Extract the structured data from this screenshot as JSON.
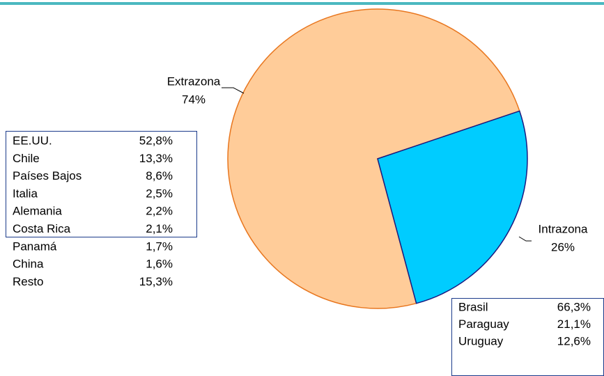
{
  "chart_data": {
    "type": "pie",
    "categories": [
      "Extrazona",
      "Intrazona"
    ],
    "values": [
      74,
      26
    ],
    "value_labels": [
      "74%",
      "26%"
    ],
    "colors": [
      "#ffcc99",
      "#00ccff"
    ],
    "stroke_colors": [
      "#e8761e",
      "#1a1a80"
    ]
  },
  "tables": [
    {
      "rows": [
        [
          "EE.UU.",
          "52,8%"
        ],
        [
          "Chile",
          "13,3%"
        ],
        [
          "Países Bajos",
          "8,6%"
        ],
        [
          "Italia",
          "2,5%"
        ],
        [
          "Alemania",
          "2,2%"
        ],
        [
          "Costa Rica",
          "2,1%"
        ],
        [
          "Panamá",
          "1,7%"
        ],
        [
          "China",
          "1,6%"
        ],
        [
          "Resto",
          "15,3%"
        ]
      ]
    },
    {
      "rows": [
        [
          "Brasil",
          "66,3%"
        ],
        [
          "Paraguay",
          "21,1%"
        ],
        [
          "Uruguay",
          "12,6%"
        ]
      ]
    }
  ]
}
